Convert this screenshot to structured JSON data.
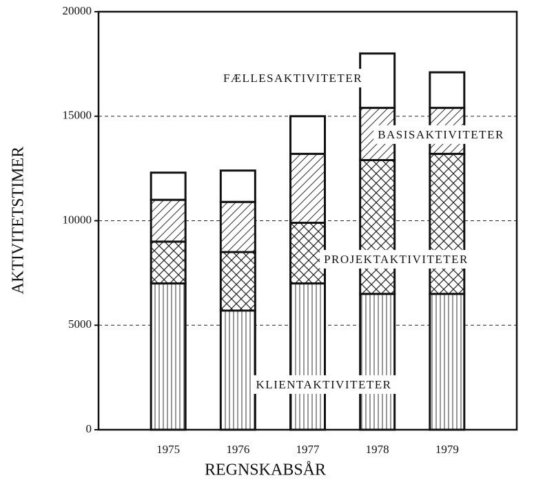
{
  "chart_data": {
    "type": "stacked_bar",
    "x_label": "REGNSKABSÅR",
    "y_label": "AKTIVITETSTIMER",
    "categories": [
      "1975",
      "1976",
      "1977",
      "1978",
      "1979"
    ],
    "series": [
      {
        "name": "KLIENTAKTIVITETER",
        "pattern": "vertical",
        "values": [
          7000,
          5700,
          7000,
          6500,
          6500
        ]
      },
      {
        "name": "PROJEKTAKTIVITETER",
        "pattern": "crosshatch",
        "values": [
          2000,
          2800,
          2900,
          6400,
          6700
        ]
      },
      {
        "name": "BASISAKTIVITETER",
        "pattern": "diagonal",
        "values": [
          2000,
          2400,
          3300,
          2500,
          2200
        ]
      },
      {
        "name": "FÆLLESAKTIVITETER",
        "pattern": "none",
        "values": [
          1300,
          1500,
          1800,
          2600,
          1700
        ]
      }
    ],
    "ylim": [
      0,
      20000
    ],
    "yticks": [
      0,
      5000,
      10000,
      15000,
      20000
    ],
    "grid": true
  }
}
